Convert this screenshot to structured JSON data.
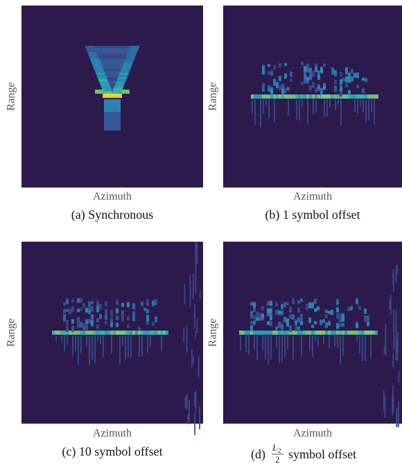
{
  "panels": [
    {
      "y_label": "Range",
      "x_label": "Azimuth",
      "caption": "(a) Synchronous"
    },
    {
      "y_label": "Range",
      "x_label": "Azimuth",
      "caption": "(b) 1 symbol offset"
    },
    {
      "y_label": "Range",
      "x_label": "Azimuth",
      "caption": "(c) 10 symbol offset"
    },
    {
      "y_label": "Range",
      "x_label": "Azimuth",
      "caption": {
        "prefix": "(d)",
        "numerator": "L",
        "subscript": "2",
        "denominator": "2",
        "suffix": "symbol offset"
      }
    }
  ]
}
